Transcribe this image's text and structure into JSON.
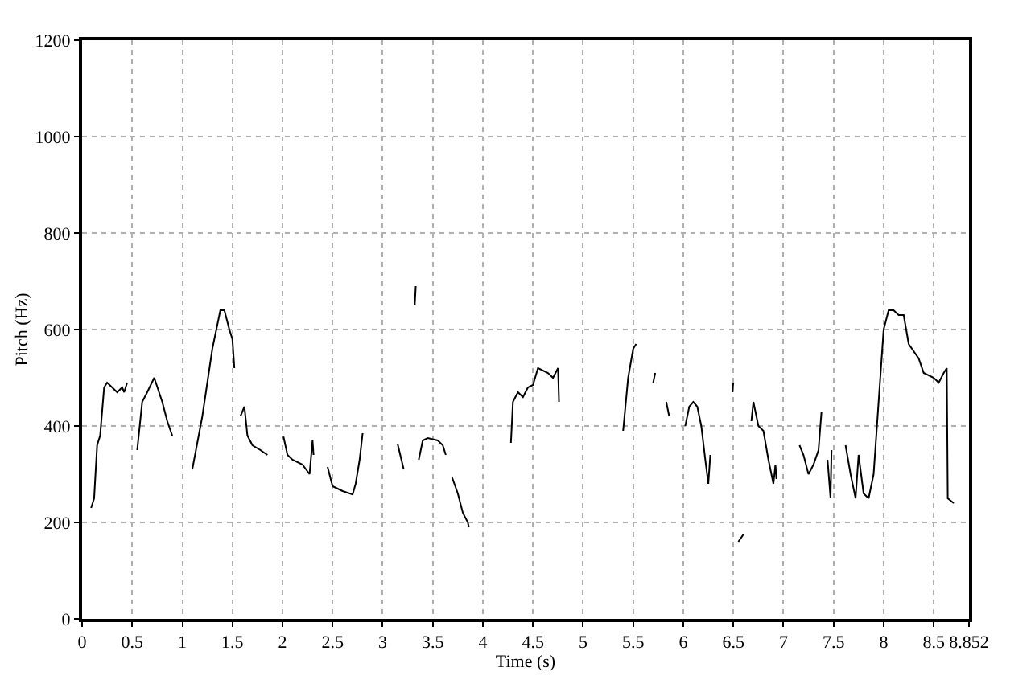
{
  "chart_data": {
    "type": "line",
    "xlabel": "Time (s)",
    "ylabel": "Pitch (Hz)",
    "xlim": [
      0,
      8.852
    ],
    "ylim": [
      0,
      1200
    ],
    "xticks": [
      0,
      0.5,
      1,
      1.5,
      2,
      2.5,
      3,
      3.5,
      4,
      4.5,
      5,
      5.5,
      6,
      6.5,
      7,
      7.5,
      8,
      8.5,
      8.852
    ],
    "yticks": [
      0,
      200,
      400,
      600,
      800,
      1000,
      1200
    ],
    "grid": true,
    "marker": "none",
    "line_style": "solid",
    "series": [
      {
        "color": "#000000",
        "x": [
          0.09,
          0.12,
          0.15,
          0.18,
          0.22,
          0.25,
          0.3,
          0.35,
          0.4,
          0.42,
          0.45,
          0.47,
          0.55,
          0.6,
          0.65,
          0.72,
          0.8,
          0.85,
          0.9,
          0.92,
          1.1,
          1.2,
          1.3,
          1.38,
          1.42,
          1.47,
          1.5,
          1.52,
          1.55,
          1.58,
          1.62,
          1.65,
          1.7,
          1.78,
          1.85,
          1.9,
          2.01,
          2.05,
          2.1,
          2.2,
          2.27,
          2.3,
          2.31,
          2.35,
          2.45,
          2.5,
          2.6,
          2.7,
          2.73,
          2.77,
          2.8,
          2.85,
          3.15,
          3.21,
          3.25,
          3.32,
          3.33,
          3.34,
          3.36,
          3.4,
          3.45,
          3.55,
          3.6,
          3.63,
          3.66,
          3.69,
          3.75,
          3.8,
          3.85,
          3.86,
          3.9,
          4.28,
          4.3,
          4.35,
          4.4,
          4.45,
          4.5,
          4.55,
          4.65,
          4.7,
          4.75,
          4.76,
          4.8,
          5.4,
          5.45,
          5.5,
          5.53,
          5.6,
          5.7,
          5.72,
          5.75,
          5.83,
          5.86,
          5.9,
          6.02,
          6.06,
          6.1,
          6.14,
          6.18,
          6.22,
          6.25,
          6.27,
          6.35,
          6.49,
          6.5,
          6.51,
          6.68,
          6.7,
          6.75,
          6.8,
          6.85,
          6.9,
          6.92,
          6.93,
          7.0,
          7.16,
          7.2,
          7.25,
          7.3,
          7.35,
          7.38,
          7.4,
          7.44,
          7.47,
          7.48,
          7.55,
          7.62,
          7.67,
          7.72,
          7.75,
          7.8,
          7.85,
          7.9,
          7.95,
          8.0,
          8.05,
          8.1,
          8.15,
          8.2,
          8.25,
          8.35,
          8.4,
          8.5,
          8.55,
          8.6,
          8.63,
          8.64,
          8.7
        ],
        "values": [
          230,
          250,
          360,
          380,
          480,
          490,
          480,
          470,
          480,
          470,
          490,
          null,
          350,
          450,
          470,
          500,
          450,
          410,
          380,
          null,
          310,
          420,
          560,
          640,
          640,
          600,
          580,
          520,
          null,
          420,
          440,
          380,
          360,
          350,
          340,
          null,
          378,
          340,
          330,
          320,
          300,
          370,
          340,
          null,
          315,
          275,
          265,
          258,
          280,
          330,
          385,
          null,
          362,
          310,
          null,
          650,
          690,
          null,
          330,
          370,
          375,
          370,
          360,
          340,
          null,
          295,
          260,
          220,
          200,
          190,
          null,
          365,
          450,
          470,
          460,
          480,
          485,
          520,
          510,
          500,
          520,
          450,
          null,
          390,
          500,
          560,
          570,
          null,
          490,
          510,
          null,
          450,
          420,
          null,
          400,
          440,
          450,
          440,
          400,
          330,
          280,
          340,
          null,
          470,
          490,
          null,
          410,
          450,
          400,
          390,
          330,
          280,
          320,
          290,
          null,
          360,
          340,
          300,
          320,
          350,
          430,
          null,
          330,
          250,
          350,
          null,
          360,
          300,
          250,
          340,
          260,
          250,
          300,
          450,
          600,
          640,
          640,
          630,
          630,
          570,
          540,
          510,
          500,
          490,
          510,
          520,
          250,
          240
        ]
      },
      {
        "color": "#000000",
        "x": [
          6.55,
          6.6
        ],
        "values": [
          160,
          175
        ]
      }
    ]
  }
}
